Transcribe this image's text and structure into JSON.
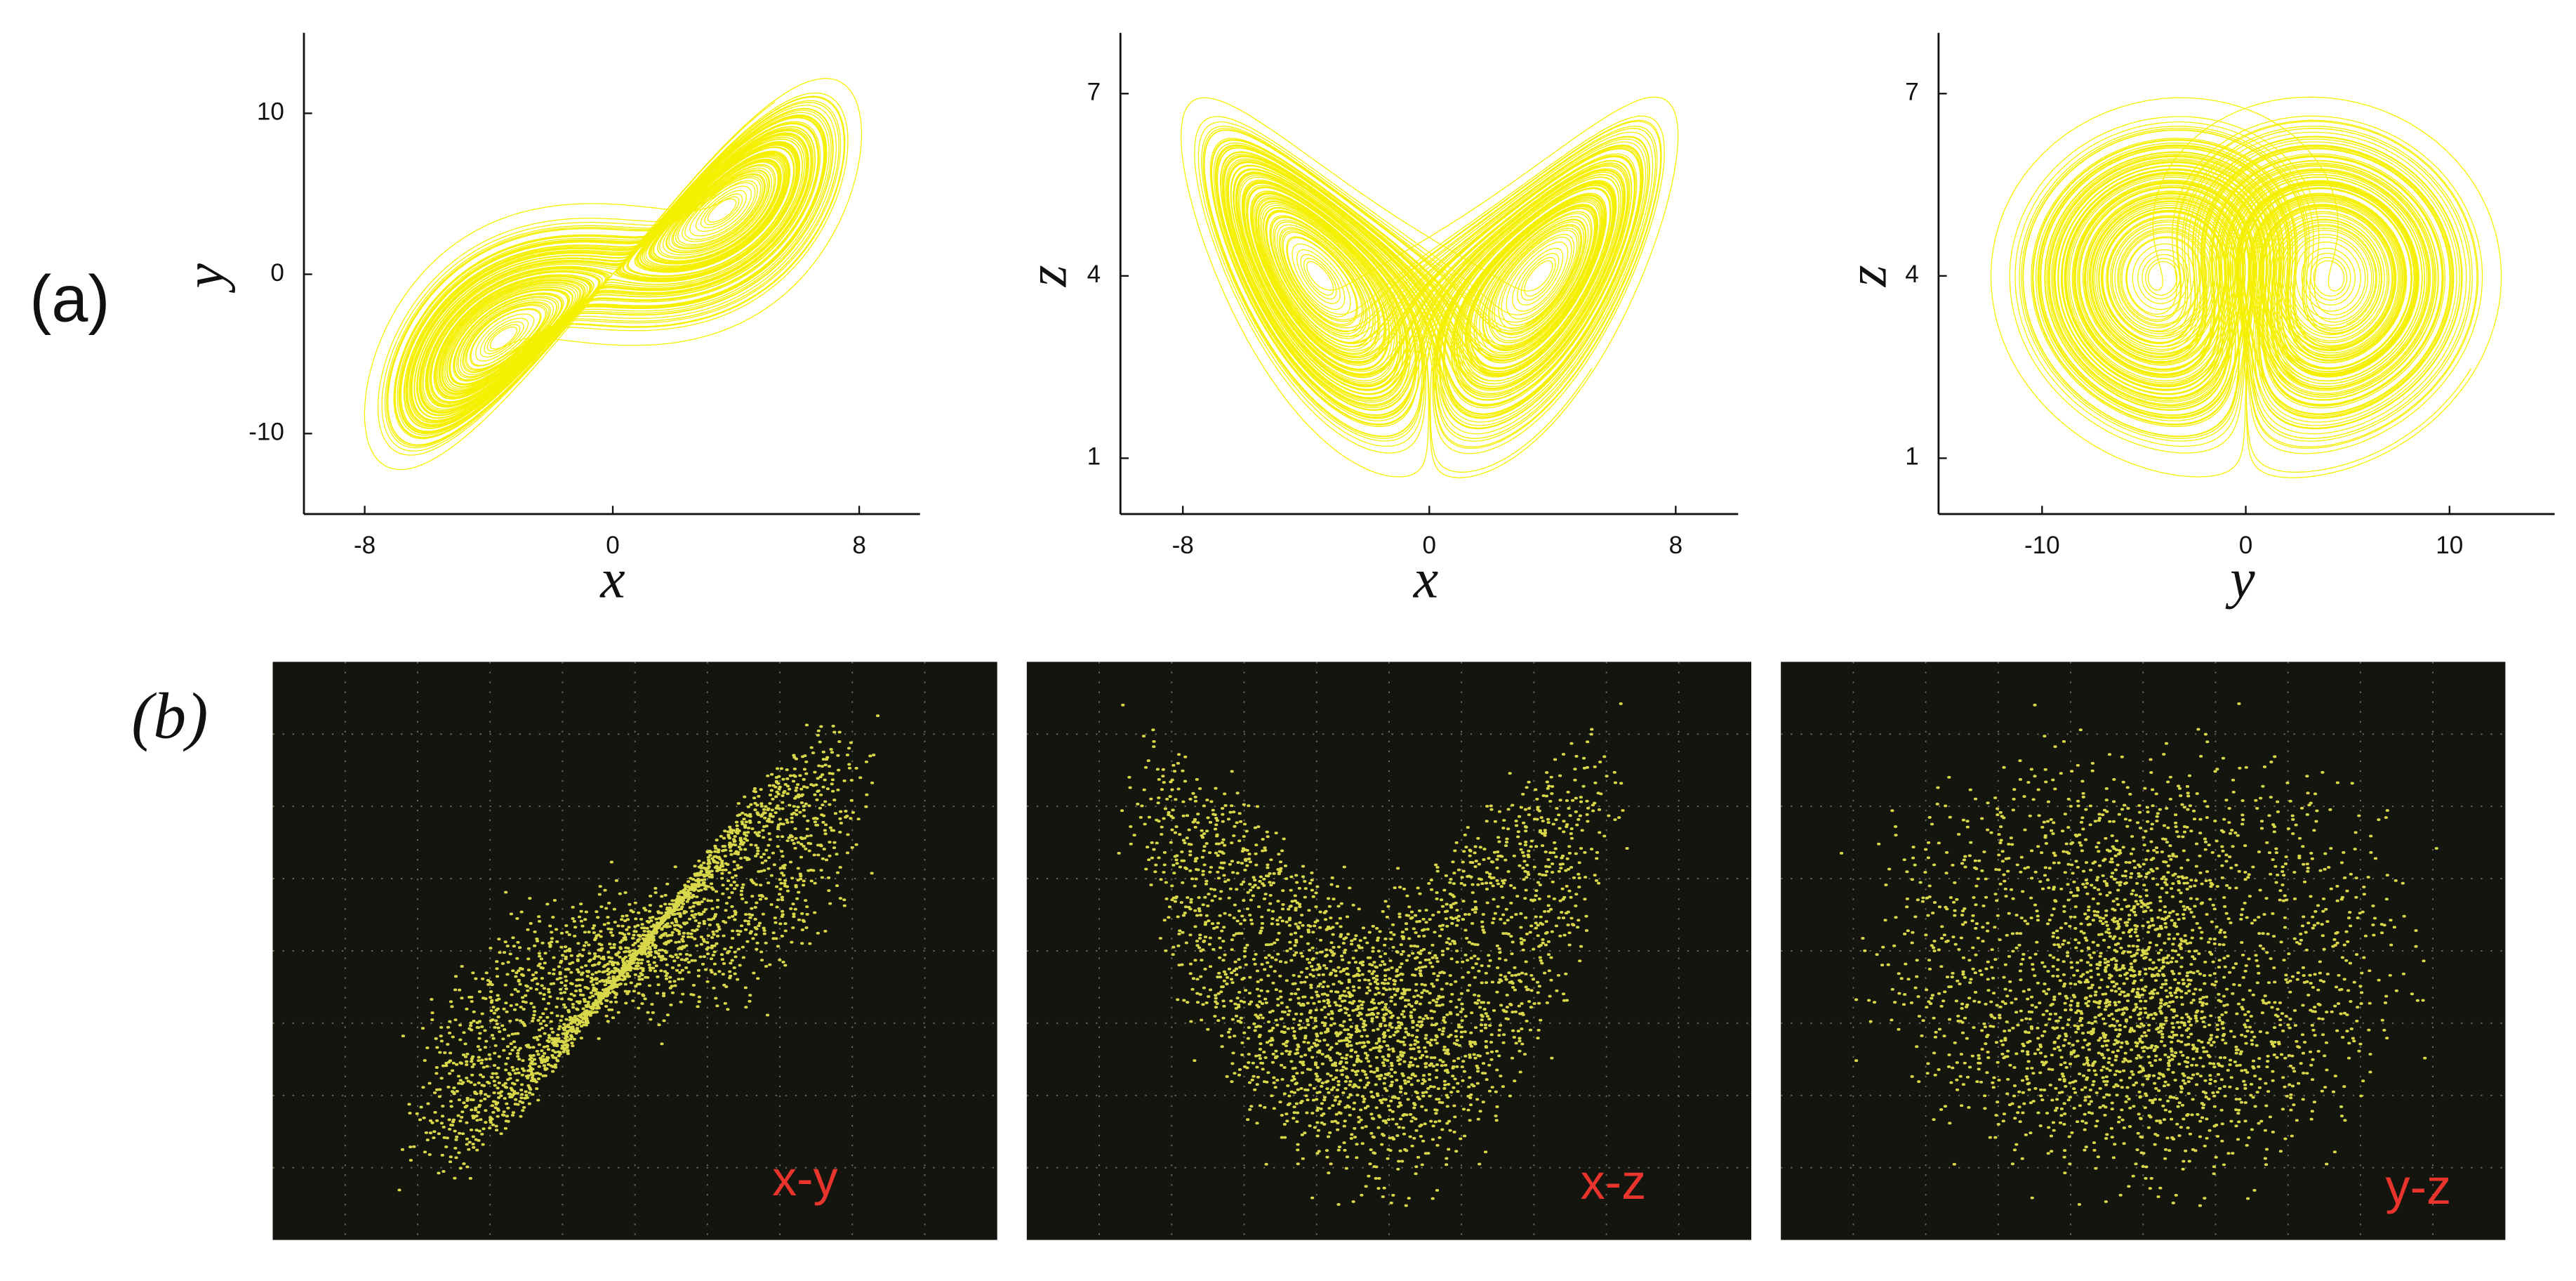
{
  "panel_a": {
    "label": "(a)",
    "plots": [
      {
        "x_label": "x",
        "y_label": "y",
        "x_ticks": [
          "-8",
          "0",
          "8"
        ],
        "y_ticks": [
          "10",
          "0",
          "-10"
        ]
      },
      {
        "x_label": "x",
        "y_label": "z",
        "x_ticks": [
          "-8",
          "0",
          "8"
        ],
        "y_ticks": [
          "7",
          "4",
          "1"
        ]
      },
      {
        "x_label": "y",
        "y_label": "z",
        "x_ticks": [
          "-10",
          "0",
          "10"
        ],
        "y_ticks": [
          "7",
          "4",
          "1"
        ]
      }
    ]
  },
  "panel_b": {
    "label": "(b)",
    "photos": [
      {
        "label": "x-y"
      },
      {
        "label": "x-z"
      },
      {
        "label": "y-z"
      }
    ]
  }
}
